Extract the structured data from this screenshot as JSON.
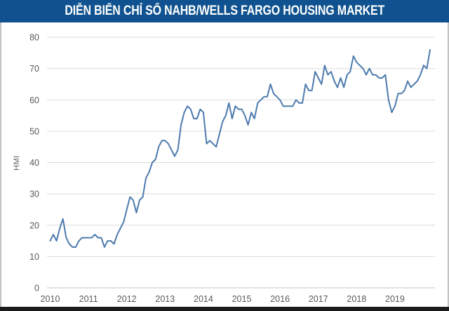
{
  "header": {
    "title": "DIỄN BIẾN CHỈ SỐ NAHB/WELLS FARGO HOUSING MARKET"
  },
  "colors": {
    "header_bg": "#10528f",
    "header_text": "#ffffff",
    "line": "#4d7bae",
    "grid": "#dcdcdc",
    "axis": "#c6c6c6",
    "tick_text": "#595959",
    "bottom_bar": "#1c1c1c",
    "panel_border": "#c2c2c2",
    "panel_bg": "#ffffff"
  },
  "chart_data": {
    "type": "line",
    "title": "DIỄN BIẾN CHỈ SỐ NAHB/WELLS FARGO HOUSING MARKET",
    "xlabel": "",
    "ylabel": "HMI",
    "ylim": [
      0,
      80
    ],
    "y_ticks": [
      0,
      10,
      20,
      30,
      40,
      50,
      60,
      70,
      80
    ],
    "x_tick_labels": [
      "2010",
      "2011",
      "2012",
      "2013",
      "2014",
      "2015",
      "2016",
      "2017",
      "2018",
      "2019"
    ],
    "grid": true,
    "legend_position": "none",
    "x_unit": "month",
    "x_start": "2010-01",
    "x_end": "2019-12",
    "series": [
      {
        "name": "NAHB/Wells Fargo HMI",
        "values": [
          15,
          17,
          15,
          19,
          22,
          16,
          14,
          13,
          13,
          15,
          16,
          16,
          16,
          16,
          17,
          16,
          16,
          13,
          15,
          15,
          14,
          17,
          19,
          21,
          25,
          29,
          28,
          24,
          28,
          29,
          35,
          37,
          40,
          41,
          45,
          47,
          47,
          46,
          44,
          42,
          44,
          52,
          56,
          58,
          57,
          54,
          54,
          57,
          56,
          46,
          47,
          46,
          45,
          49,
          53,
          55,
          59,
          54,
          58,
          57,
          57,
          55,
          52,
          56,
          54,
          59,
          60,
          61,
          61,
          65,
          62,
          61,
          60,
          58,
          58,
          58,
          58,
          60,
          59,
          59,
          65,
          63,
          63,
          69,
          67,
          65,
          71,
          68,
          69,
          66,
          64,
          67,
          64,
          68,
          69,
          74,
          72,
          71,
          70,
          68,
          70,
          68,
          68,
          67,
          67,
          68,
          60,
          56,
          58,
          62,
          62,
          63,
          66,
          64,
          65,
          66,
          68,
          71,
          70,
          76
        ]
      }
    ]
  }
}
